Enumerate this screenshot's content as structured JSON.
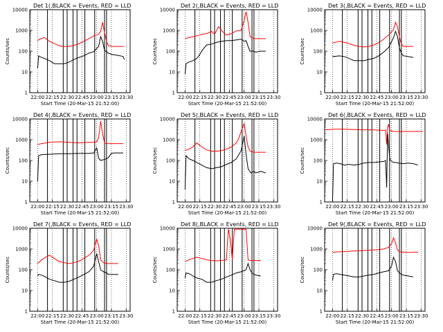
{
  "chart_data": {
    "type": "line",
    "time_base": "21:52:00",
    "xlim_minutes_after_time_base": [
      0,
      102
    ],
    "xtick_labels": [
      "22:00",
      "22:15",
      "22:30",
      "22:45",
      "23:00",
      "23:15",
      "23:30"
    ],
    "ylim": [
      1,
      10000
    ],
    "yscale": "log",
    "ytick_labels": [
      "1",
      "10",
      "100",
      "1000",
      "10000"
    ],
    "ylabel": "Counts/sec",
    "xlabel": "Start Time (20-Mar-15 21:52:00)",
    "series_colors": {
      "events": "#000000",
      "lld": "#ff0000"
    },
    "series": [
      {
        "panel": 1,
        "title": "Det 1(,BLACK = Events, RED = LLD",
        "events_x": [
          8,
          9,
          10,
          15,
          20,
          25,
          30,
          35,
          40,
          45,
          50,
          55,
          60,
          65,
          70,
          72,
          74,
          76,
          78,
          80,
          83,
          88,
          92,
          95,
          96
        ],
        "events_y": [
          15,
          60,
          55,
          45,
          35,
          25,
          25,
          25,
          30,
          40,
          50,
          60,
          80,
          95,
          170,
          500,
          300,
          110,
          95,
          80,
          70,
          65,
          60,
          55,
          40
        ],
        "lld_x": [
          8,
          10,
          15,
          20,
          25,
          30,
          35,
          40,
          45,
          50,
          55,
          60,
          65,
          70,
          72,
          74,
          76,
          78,
          80,
          85,
          90,
          96
        ],
        "lld_y": [
          320,
          380,
          450,
          300,
          230,
          180,
          170,
          170,
          190,
          230,
          300,
          400,
          550,
          650,
          900,
          2500,
          800,
          300,
          180,
          170,
          170,
          170
        ]
      },
      {
        "panel": 2,
        "title": "Det 2(,BLACK = Events, RED = LLD",
        "events_x": [
          8,
          9,
          12,
          16,
          20,
          22,
          26,
          30,
          35,
          40,
          45,
          50,
          55,
          60,
          65,
          68,
          70,
          72,
          74,
          77,
          80,
          84,
          90
        ],
        "events_y": [
          8,
          25,
          30,
          35,
          45,
          60,
          120,
          200,
          220,
          270,
          300,
          320,
          320,
          350,
          380,
          300,
          320,
          170,
          100,
          100,
          90,
          100,
          100
        ],
        "lld_x": [
          8,
          12,
          16,
          20,
          25,
          30,
          35,
          38,
          42,
          46,
          50,
          55,
          60,
          65,
          68,
          70,
          72,
          74,
          78,
          85,
          90
        ],
        "lld_y": [
          400,
          450,
          500,
          550,
          650,
          700,
          900,
          650,
          1500,
          900,
          600,
          700,
          950,
          1000,
          3000,
          8000,
          2500,
          500,
          400,
          400,
          400
        ]
      },
      {
        "panel": 3,
        "title": "Det 3(,BLACK = Events, RED = LLD",
        "events_x": [
          8,
          9,
          15,
          20,
          25,
          30,
          35,
          40,
          45,
          50,
          55,
          60,
          65,
          70,
          72,
          74,
          76,
          78,
          80,
          85,
          90
        ],
        "events_y": [
          60,
          55,
          60,
          55,
          45,
          35,
          35,
          35,
          40,
          45,
          60,
          90,
          150,
          450,
          900,
          500,
          150,
          80,
          60,
          55,
          50
        ],
        "lld_x": [
          8,
          15,
          20,
          25,
          30,
          35,
          40,
          45,
          50,
          55,
          60,
          65,
          70,
          72,
          74,
          76,
          78,
          80,
          85,
          90
        ],
        "lld_y": [
          250,
          300,
          270,
          230,
          190,
          170,
          160,
          170,
          200,
          260,
          380,
          600,
          1100,
          2500,
          1500,
          500,
          220,
          170,
          170,
          170
        ]
      },
      {
        "panel": 4,
        "title": "Det 4(,BLACK = Events, RED = LLD",
        "events_x": [
          8,
          9,
          12,
          20,
          30,
          40,
          50,
          60,
          65,
          68,
          70,
          72,
          75,
          78,
          80,
          83,
          86,
          90,
          95
        ],
        "events_y": [
          10,
          170,
          190,
          200,
          210,
          210,
          220,
          220,
          230,
          400,
          130,
          100,
          110,
          120,
          140,
          220,
          230,
          230,
          230
        ],
        "lld_x": [
          8,
          12,
          20,
          30,
          40,
          50,
          60,
          65,
          68,
          70,
          72,
          74,
          76,
          78,
          80,
          85,
          90,
          95
        ],
        "lld_y": [
          600,
          650,
          750,
          800,
          750,
          700,
          750,
          750,
          800,
          1200,
          8000,
          2000,
          700,
          650,
          650,
          650,
          650,
          650
        ]
      },
      {
        "panel": 5,
        "title": "Det 5(,BLACK = Events, RED = LLD",
        "events_x": [
          8,
          9,
          12,
          16,
          20,
          25,
          30,
          35,
          40,
          45,
          50,
          55,
          60,
          62,
          65,
          68,
          70,
          72,
          75,
          78,
          80,
          85,
          90
        ],
        "events_y": [
          4,
          170,
          120,
          100,
          80,
          60,
          45,
          40,
          45,
          50,
          65,
          80,
          120,
          170,
          300,
          1500,
          200,
          40,
          25,
          30,
          25,
          30,
          25
        ],
        "lld_x": [
          8,
          12,
          16,
          20,
          25,
          30,
          35,
          40,
          45,
          50,
          55,
          60,
          62,
          65,
          68,
          70,
          72,
          74,
          78,
          85,
          90
        ],
        "lld_y": [
          300,
          350,
          450,
          700,
          450,
          320,
          280,
          280,
          300,
          350,
          450,
          700,
          1000,
          2500,
          6000,
          1500,
          450,
          280,
          250,
          250,
          250
        ]
      },
      {
        "panel": 6,
        "title": "Det 6(,BLACK = Events, RED = LLD",
        "events_x": [
          8,
          9,
          12,
          16,
          20,
          25,
          30,
          35,
          40,
          45,
          50,
          55,
          60,
          62,
          63,
          64,
          65,
          66,
          67,
          70,
          72,
          75,
          80,
          85,
          90,
          95
        ],
        "events_y": [
          1,
          70,
          75,
          70,
          60,
          65,
          60,
          65,
          75,
          80,
          80,
          85,
          90,
          100,
          5,
          2000,
          500,
          150,
          100,
          80,
          80,
          75,
          70,
          75,
          70,
          60
        ],
        "lld_x": [
          0,
          10,
          20,
          30,
          40,
          50,
          60,
          62,
          63,
          64,
          65,
          66,
          67,
          68,
          70,
          80,
          90,
          100
        ],
        "lld_y": [
          3000,
          3200,
          3200,
          3100,
          3000,
          3000,
          2800,
          2900,
          600,
          4000,
          5500,
          3000,
          2800,
          2600,
          2500,
          2500,
          2500,
          2500
        ]
      },
      {
        "panel": 7,
        "title": "Det 7(,BLACK = Events, RED = LLD",
        "events_x": [
          8,
          9,
          12,
          16,
          20,
          25,
          30,
          35,
          40,
          45,
          50,
          55,
          60,
          62,
          65,
          68,
          70,
          72,
          75,
          78,
          80,
          85,
          90
        ],
        "events_y": [
          50,
          60,
          55,
          45,
          35,
          30,
          25,
          25,
          28,
          35,
          45,
          60,
          80,
          100,
          150,
          600,
          250,
          100,
          80,
          70,
          60,
          60,
          60
        ],
        "lld_x": [
          8,
          12,
          16,
          20,
          25,
          30,
          35,
          40,
          45,
          50,
          55,
          60,
          62,
          65,
          68,
          70,
          72,
          75,
          78,
          85,
          90
        ],
        "lld_y": [
          200,
          300,
          400,
          500,
          350,
          250,
          220,
          200,
          220,
          260,
          350,
          500,
          600,
          900,
          3000,
          1500,
          300,
          220,
          200,
          200,
          200
        ]
      },
      {
        "panel": 8,
        "title": "Det 8(,BLACK = Events, RED = LLD",
        "events_x": [
          8,
          9,
          12,
          16,
          20,
          25,
          30,
          35,
          40,
          45,
          50,
          55,
          60,
          65,
          70,
          72,
          74,
          76,
          78,
          80,
          85
        ],
        "events_y": [
          40,
          70,
          65,
          50,
          40,
          35,
          25,
          25,
          30,
          35,
          45,
          55,
          70,
          80,
          100,
          200,
          100,
          70,
          60,
          55,
          50
        ],
        "lld_x": [
          8,
          12,
          16,
          20,
          25,
          30,
          35,
          40,
          45,
          50,
          52,
          54,
          56,
          58,
          60,
          62,
          64,
          66,
          68,
          70,
          72,
          74,
          76,
          78,
          80,
          85
        ],
        "lld_y": [
          250,
          300,
          350,
          400,
          350,
          300,
          280,
          270,
          280,
          300,
          9000,
          3000,
          300,
          9000,
          9000,
          9000,
          9000,
          9000,
          9000,
          9000,
          300,
          280,
          280,
          280,
          280,
          280
        ]
      },
      {
        "panel": 9,
        "title": "Det 9(,BLACK = Events, RED = LLD",
        "events_x": [
          8,
          9,
          12,
          16,
          20,
          25,
          30,
          35,
          40,
          45,
          50,
          55,
          60,
          65,
          68,
          70,
          72,
          74,
          76,
          78,
          80,
          85,
          90
        ],
        "events_y": [
          30,
          60,
          65,
          60,
          55,
          50,
          45,
          45,
          50,
          55,
          60,
          70,
          80,
          90,
          150,
          400,
          250,
          90,
          70,
          60,
          55,
          50,
          45
        ],
        "lld_x": [
          8,
          12,
          16,
          20,
          25,
          30,
          35,
          40,
          45,
          50,
          55,
          60,
          65,
          68,
          70,
          72,
          74,
          76,
          80,
          85,
          90,
          95
        ],
        "lld_y": [
          700,
          720,
          740,
          760,
          780,
          800,
          820,
          850,
          880,
          900,
          950,
          1000,
          1200,
          1800,
          3500,
          2000,
          900,
          750,
          700,
          680,
          700,
          700
        ]
      }
    ]
  }
}
